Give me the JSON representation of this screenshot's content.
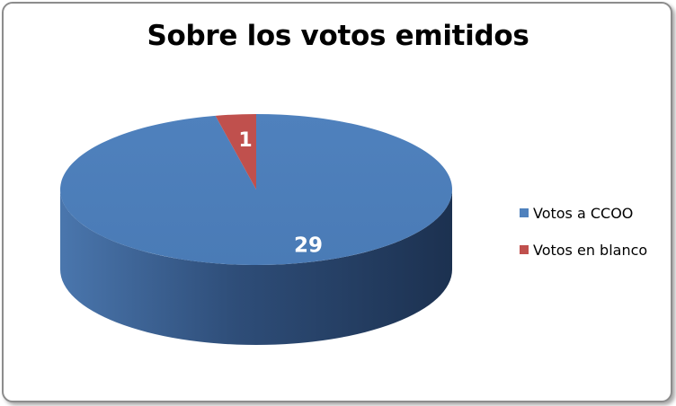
{
  "chart_data": {
    "type": "pie",
    "title": "Sobre los votos emitidos",
    "categories": [
      "Votos a CCOO",
      "Votos en blanco"
    ],
    "values": [
      29,
      1
    ],
    "colors": [
      "#4f81bd",
      "#c0504d"
    ],
    "data_labels": [
      "29",
      "1"
    ],
    "style": "3d",
    "legend_position": "right"
  }
}
